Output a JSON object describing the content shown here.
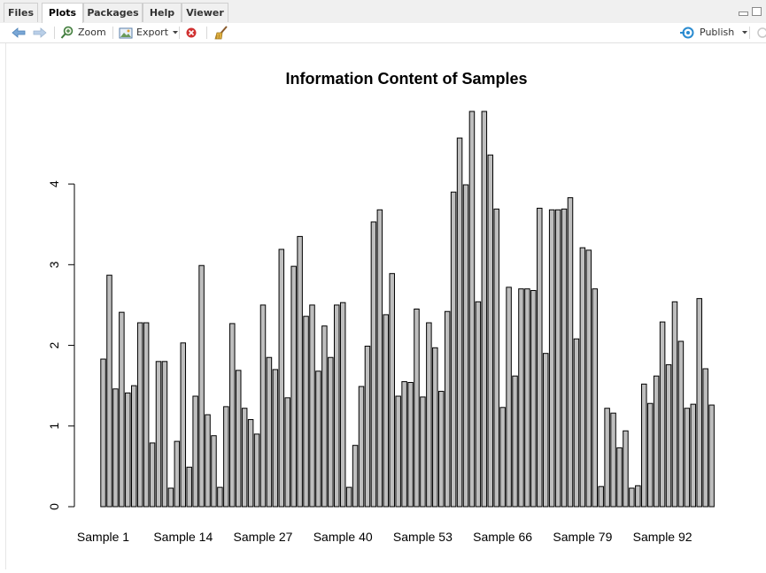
{
  "tabs": [
    {
      "label": "Files",
      "active": false
    },
    {
      "label": "Plots",
      "active": true
    },
    {
      "label": "Packages",
      "active": false
    },
    {
      "label": "Help",
      "active": false
    },
    {
      "label": "Viewer",
      "active": false
    }
  ],
  "toolbar": {
    "zoom_label": "Zoom",
    "export_label": "Export",
    "publish_label": "Publish"
  },
  "colors": {
    "bar_fill": "#bebebe",
    "bar_stroke": "#000000",
    "nav_arrow": "#7aa7d6",
    "remove_icon": "#d03030"
  },
  "chart_data": {
    "type": "bar",
    "title": "Information Content of Samples",
    "xlabel": "",
    "ylabel": "",
    "ylim": [
      0,
      4.9
    ],
    "yticks": [
      0,
      1,
      2,
      3,
      4
    ],
    "grid": false,
    "legend": "none",
    "x_tick_labels": [
      {
        "label": "Sample 1",
        "index": 0
      },
      {
        "label": "Sample 14",
        "index": 13
      },
      {
        "label": "Sample 27",
        "index": 26
      },
      {
        "label": "Sample 40",
        "index": 39
      },
      {
        "label": "Sample 53",
        "index": 52
      },
      {
        "label": "Sample 66",
        "index": 65
      },
      {
        "label": "Sample 79",
        "index": 78
      },
      {
        "label": "Sample 92",
        "index": 91
      }
    ],
    "values": [
      1.83,
      2.87,
      1.46,
      2.41,
      1.41,
      1.5,
      2.28,
      2.28,
      0.79,
      1.8,
      1.8,
      0.23,
      0.81,
      2.03,
      0.49,
      1.37,
      2.99,
      1.14,
      0.88,
      0.24,
      1.24,
      2.27,
      1.69,
      1.22,
      1.08,
      0.9,
      2.5,
      1.85,
      1.7,
      3.19,
      1.35,
      2.98,
      3.35,
      2.36,
      2.5,
      1.68,
      2.24,
      1.85,
      2.5,
      2.53,
      0.24,
      0.76,
      1.49,
      1.99,
      3.53,
      3.68,
      2.38,
      2.89,
      1.37,
      1.55,
      1.54,
      2.45,
      1.36,
      2.28,
      1.97,
      1.43,
      2.42,
      3.9,
      4.57,
      3.99,
      4.9,
      2.54,
      4.9,
      4.36,
      3.69,
      1.23,
      2.72,
      1.62,
      2.7,
      2.7,
      2.68,
      3.7,
      1.9,
      3.68,
      3.68,
      3.69,
      3.83,
      2.08,
      3.21,
      3.18,
      2.7,
      0.25,
      1.22,
      1.16,
      0.73,
      0.94,
      0.23,
      0.26,
      1.52,
      1.28,
      1.62,
      2.29,
      1.76,
      2.54,
      2.05,
      1.22,
      1.27,
      2.58,
      1.71,
      1.26
    ]
  }
}
